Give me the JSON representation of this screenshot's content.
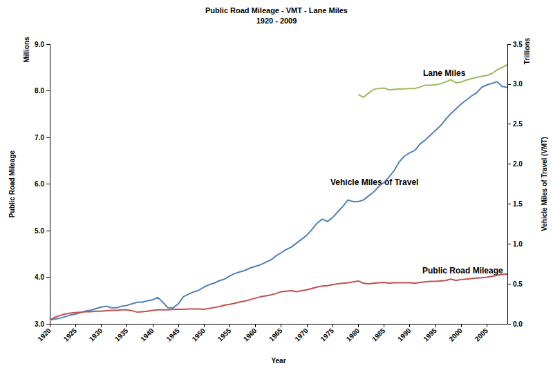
{
  "chart_data": {
    "type": "line",
    "title": "Public Road Mileage - VMT - Lane Miles",
    "subtitle": "1920 - 2009",
    "xlabel": "Year",
    "ylabel": "Public Road Mileage",
    "yunit": "Millions",
    "y2label": "Vehicle Miles of Travel (VMT)",
    "y2unit": "Trillions",
    "grid": false,
    "x": [
      1920,
      1921,
      1922,
      1923,
      1924,
      1925,
      1926,
      1927,
      1928,
      1929,
      1930,
      1931,
      1932,
      1933,
      1934,
      1935,
      1936,
      1937,
      1938,
      1939,
      1940,
      1941,
      1942,
      1943,
      1944,
      1945,
      1946,
      1947,
      1948,
      1949,
      1950,
      1951,
      1952,
      1953,
      1954,
      1955,
      1956,
      1957,
      1958,
      1959,
      1960,
      1961,
      1962,
      1963,
      1964,
      1965,
      1966,
      1967,
      1968,
      1969,
      1970,
      1971,
      1972,
      1973,
      1974,
      1975,
      1976,
      1977,
      1978,
      1979,
      1980,
      1981,
      1982,
      1983,
      1984,
      1985,
      1986,
      1987,
      1988,
      1989,
      1990,
      1991,
      1992,
      1993,
      1994,
      1995,
      1996,
      1997,
      1998,
      1999,
      2000,
      2001,
      2002,
      2003,
      2004,
      2005,
      2006,
      2007,
      2008,
      2009
    ],
    "xlim": [
      1920,
      2009
    ],
    "xticks": [
      1920,
      1925,
      1930,
      1935,
      1940,
      1945,
      1950,
      1955,
      1960,
      1965,
      1970,
      1975,
      1980,
      1985,
      1990,
      1995,
      2000,
      2005
    ],
    "ylim": [
      3,
      9
    ],
    "yticks": [
      {
        "value": 3,
        "label": "3.0"
      },
      {
        "value": 4,
        "label": "4.0"
      },
      {
        "value": 5,
        "label": "5.0"
      },
      {
        "value": 6,
        "label": "6.0"
      },
      {
        "value": 7,
        "label": "7.0"
      },
      {
        "value": 8,
        "label": "8.0"
      },
      {
        "value": 9,
        "label": "9.0"
      }
    ],
    "y2lim": [
      0,
      3.5
    ],
    "y2ticks": [
      {
        "value": 0,
        "label": "0.0"
      },
      0.5,
      {
        "value": 1,
        "label": "1.0"
      },
      1.5,
      {
        "value": 2,
        "label": "2.0"
      },
      2.5,
      {
        "value": 3,
        "label": "3.0"
      },
      3.5
    ],
    "series": [
      {
        "name": "Lane Miles",
        "color": "#9bbb59",
        "axis": "y",
        "values": [
          null,
          null,
          null,
          null,
          null,
          null,
          null,
          null,
          null,
          null,
          null,
          null,
          null,
          null,
          null,
          null,
          null,
          null,
          null,
          null,
          null,
          null,
          null,
          null,
          null,
          null,
          null,
          null,
          null,
          null,
          null,
          null,
          null,
          null,
          null,
          null,
          null,
          null,
          null,
          null,
          null,
          null,
          null,
          null,
          null,
          null,
          null,
          null,
          null,
          null,
          null,
          null,
          null,
          null,
          null,
          null,
          null,
          null,
          null,
          null,
          7.92,
          7.86,
          7.95,
          8.03,
          8.05,
          8.06,
          8.02,
          8.03,
          8.04,
          8.04,
          8.05,
          8.05,
          8.08,
          8.12,
          8.12,
          8.13,
          8.15,
          8.19,
          8.24,
          8.17,
          8.19,
          8.23,
          8.26,
          8.29,
          8.31,
          8.33,
          8.37,
          8.45,
          8.5,
          8.56
        ]
      },
      {
        "name": "Vehicle Miles of Travel",
        "color": "#4f81bd",
        "axis": "y2",
        "values": [
          0.05,
          0.06,
          0.07,
          0.09,
          0.11,
          0.12,
          0.14,
          0.16,
          0.17,
          0.19,
          0.21,
          0.22,
          0.2,
          0.2,
          0.22,
          0.23,
          0.25,
          0.27,
          0.27,
          0.29,
          0.3,
          0.33,
          0.27,
          0.2,
          0.2,
          0.25,
          0.34,
          0.37,
          0.4,
          0.42,
          0.46,
          0.49,
          0.51,
          0.54,
          0.56,
          0.6,
          0.63,
          0.65,
          0.67,
          0.7,
          0.72,
          0.74,
          0.77,
          0.8,
          0.85,
          0.89,
          0.93,
          0.96,
          1.01,
          1.06,
          1.11,
          1.18,
          1.26,
          1.31,
          1.28,
          1.33,
          1.4,
          1.47,
          1.55,
          1.53,
          1.53,
          1.55,
          1.6,
          1.65,
          1.72,
          1.77,
          1.84,
          1.92,
          2.03,
          2.1,
          2.14,
          2.17,
          2.25,
          2.3,
          2.36,
          2.42,
          2.48,
          2.56,
          2.63,
          2.69,
          2.75,
          2.8,
          2.85,
          2.89,
          2.96,
          2.99,
          3.01,
          3.03,
          2.97,
          2.96
        ]
      },
      {
        "name": "Public Road Mileage",
        "color": "#c0504d",
        "axis": "y",
        "values": [
          3.08,
          3.14,
          3.18,
          3.21,
          3.23,
          3.24,
          3.25,
          3.26,
          3.26,
          3.27,
          3.27,
          3.28,
          3.29,
          3.29,
          3.3,
          3.3,
          3.28,
          3.25,
          3.26,
          3.27,
          3.29,
          3.3,
          3.3,
          3.3,
          3.31,
          3.31,
          3.31,
          3.32,
          3.32,
          3.32,
          3.31,
          3.33,
          3.35,
          3.37,
          3.4,
          3.42,
          3.44,
          3.47,
          3.49,
          3.52,
          3.55,
          3.58,
          3.6,
          3.62,
          3.65,
          3.69,
          3.7,
          3.71,
          3.69,
          3.71,
          3.73,
          3.76,
          3.79,
          3.81,
          3.82,
          3.84,
          3.86,
          3.87,
          3.88,
          3.9,
          3.92,
          3.87,
          3.86,
          3.87,
          3.88,
          3.89,
          3.87,
          3.88,
          3.88,
          3.88,
          3.88,
          3.87,
          3.89,
          3.9,
          3.91,
          3.91,
          3.92,
          3.93,
          3.96,
          3.93,
          3.95,
          3.96,
          3.97,
          3.98,
          3.99,
          4.0,
          4.02,
          4.04,
          4.06,
          4.07
        ]
      }
    ]
  }
}
